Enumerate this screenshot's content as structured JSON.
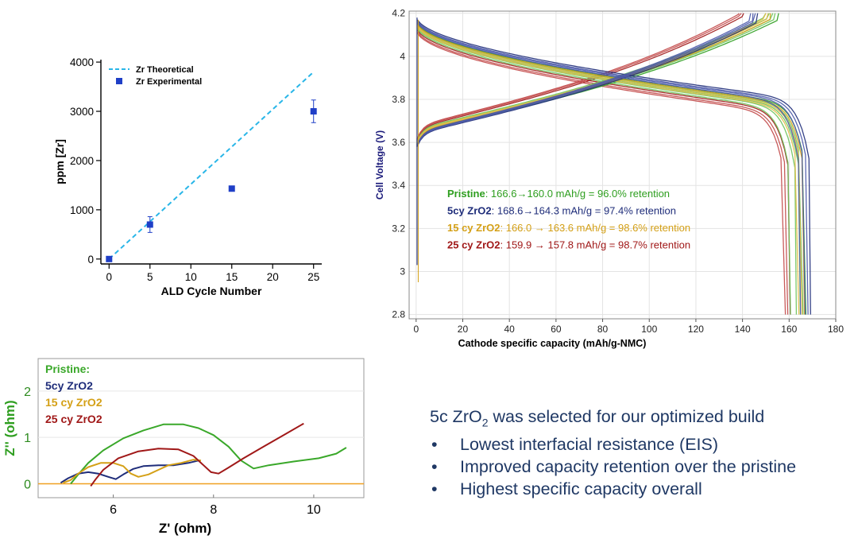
{
  "chart_data": [
    {
      "id": "zr_ppm",
      "type": "scatter",
      "xlabel": "ALD Cycle Number",
      "ylabel": "ppm [Zr]",
      "xlim": [
        -1,
        26
      ],
      "ylim": [
        -100,
        4050
      ],
      "xticks": [
        0,
        5,
        10,
        15,
        20,
        25
      ],
      "yticks": [
        0,
        1000,
        2000,
        3000,
        4000
      ],
      "series": [
        {
          "name": "Zr Theoretical",
          "style": "dashed-line",
          "color": "#29b6e8",
          "x": [
            0,
            25
          ],
          "y": [
            0,
            3800
          ]
        },
        {
          "name": "Zr Experimental",
          "style": "square-markers",
          "color": "#1f3fc7",
          "x": [
            0,
            5,
            15,
            25
          ],
          "y": [
            0,
            700,
            1430,
            3000
          ],
          "err": [
            0,
            160,
            40,
            230
          ]
        }
      ]
    },
    {
      "id": "voltage_profile",
      "type": "line",
      "xlabel": "Cathode specific capacity (mAh/g-NMC)",
      "ylabel": "Cell Voltage (V)",
      "xlim": [
        -3,
        180
      ],
      "ylim": [
        2.78,
        4.21
      ],
      "xticks": [
        0,
        20,
        40,
        60,
        80,
        100,
        120,
        140,
        160,
        180
      ],
      "yticks": [
        2.8,
        3,
        3.2,
        3.4,
        3.6,
        3.8,
        4,
        4.2
      ],
      "series": [
        {
          "name": "Pristine",
          "color": "#2e9e1f",
          "capacity_start": 166.6,
          "capacity_end": 160.0,
          "retention_pct": 96.0
        },
        {
          "name": "5cy ZrO2",
          "color": "#1f2d7a",
          "capacity_start": 168.6,
          "capacity_end": 164.3,
          "retention_pct": 97.4
        },
        {
          "name": "15 cy ZrO2",
          "color": "#d4a017",
          "capacity_start": 166.0,
          "capacity_end": 163.6,
          "retention_pct": 98.6
        },
        {
          "name": "25 cy ZrO2",
          "color": "#a01818",
          "capacity_start": 159.9,
          "capacity_end": 157.8,
          "retention_pct": 98.7
        }
      ],
      "annotations": [
        {
          "name": "Pristine",
          "text": ": 166.6→160.0 mAh/g = 96.0% retention",
          "color": "#2e9e1f"
        },
        {
          "name": "5cy ZrO2",
          "text": ": 168.6→164.3 mAh/g = 97.4% retention",
          "color": "#1f2d7a"
        },
        {
          "name": "15 cy ZrO2",
          "text": ": 166.0 → 163.6 mAh/g = 98.6% retention",
          "color": "#d4a017"
        },
        {
          "name": "25 cy ZrO2",
          "text": ": 159.9 → 157.8 mAh/g = 98.7% retention",
          "color": "#a01818"
        }
      ]
    },
    {
      "id": "eis_nyquist",
      "type": "line",
      "xlabel": "Z' (ohm)",
      "ylabel": "Z'' (ohm)",
      "xlim": [
        4.5,
        11.0
      ],
      "ylim": [
        -0.3,
        2.7
      ],
      "xticks": [
        6,
        8,
        10
      ],
      "yticks": [
        0,
        1,
        2
      ],
      "legend": [
        "Pristine:",
        "5cy ZrO2",
        "15 cy ZrO2",
        "25 cy ZrO2"
      ],
      "series": [
        {
          "name": "Pristine",
          "color": "#3aa82a",
          "x": [
            5.15,
            5.3,
            5.5,
            5.8,
            6.2,
            6.6,
            7.0,
            7.4,
            7.7,
            8.0,
            8.3,
            8.55,
            8.8,
            9.1,
            9.6,
            10.1,
            10.45,
            10.65
          ],
          "y": [
            0.0,
            0.2,
            0.45,
            0.72,
            0.98,
            1.15,
            1.28,
            1.28,
            1.2,
            1.05,
            0.8,
            0.5,
            0.33,
            0.4,
            0.48,
            0.55,
            0.65,
            0.78
          ]
        },
        {
          "name": "5cy ZrO2",
          "color": "#1f2d7a",
          "x": [
            4.95,
            5.1,
            5.3,
            5.5,
            5.7,
            5.9,
            6.05,
            6.2,
            6.4,
            6.6,
            6.9,
            7.2,
            7.5,
            7.7
          ],
          "y": [
            0.02,
            0.12,
            0.22,
            0.25,
            0.22,
            0.15,
            0.1,
            0.2,
            0.32,
            0.38,
            0.4,
            0.4,
            0.45,
            0.5
          ]
        },
        {
          "name": "15 cy ZrO2",
          "color": "#d4a017",
          "x": [
            5.0,
            5.15,
            5.3,
            5.5,
            5.75,
            6.0,
            6.2,
            6.35,
            6.5,
            6.7,
            6.9,
            7.1,
            7.35,
            7.6,
            7.75
          ],
          "y": [
            0.02,
            0.08,
            0.22,
            0.36,
            0.45,
            0.45,
            0.38,
            0.22,
            0.15,
            0.2,
            0.3,
            0.4,
            0.45,
            0.52,
            0.5
          ]
        },
        {
          "name": "25 cy ZrO2",
          "color": "#a01818",
          "x": [
            5.55,
            5.65,
            5.8,
            6.1,
            6.5,
            6.9,
            7.3,
            7.6,
            7.8,
            7.95,
            8.1,
            8.3,
            8.6,
            9.0,
            9.4,
            9.8
          ],
          "y": [
            -0.05,
            0.1,
            0.3,
            0.55,
            0.7,
            0.76,
            0.74,
            0.6,
            0.4,
            0.25,
            0.22,
            0.35,
            0.55,
            0.8,
            1.05,
            1.3
          ]
        }
      ]
    }
  ],
  "conclusion": {
    "title_pre": "5c ZrO",
    "title_sub": "2",
    "title_post": " was selected for our optimized build",
    "bullet_char": "•",
    "bullets": [
      "Lowest interfacial resistance (EIS)",
      "Improved capacity retention over the pristine",
      "Highest specific capacity overall"
    ]
  }
}
